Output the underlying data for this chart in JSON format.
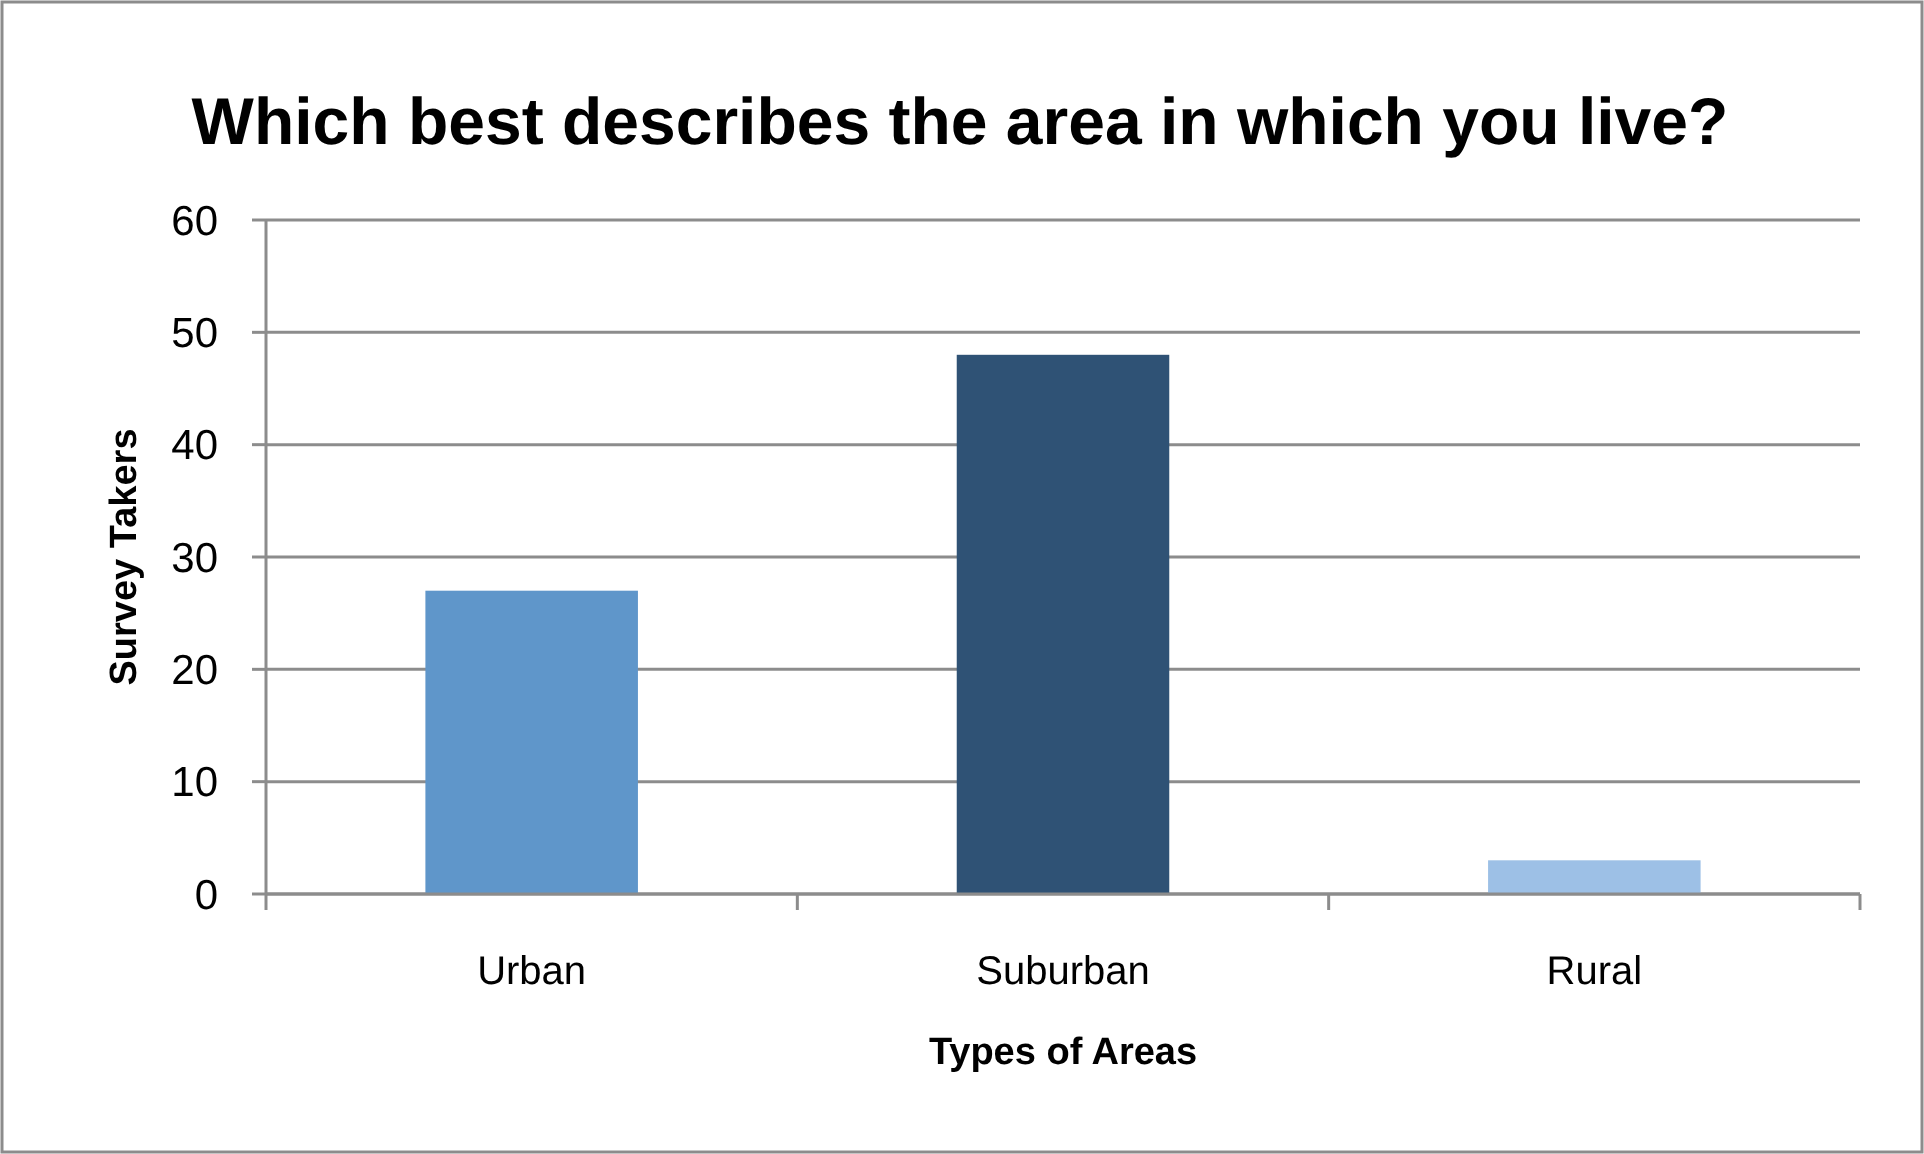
{
  "chart_data": {
    "type": "bar",
    "title": "Which best describes the area in which you live?",
    "xlabel": "Types of Areas",
    "ylabel": "Survey Takers",
    "categories": [
      "Urban",
      "Suburban",
      "Rural"
    ],
    "values": [
      27,
      48,
      3
    ],
    "colors": [
      "#5f96ca",
      "#2f5275",
      "#9dc0e6"
    ],
    "ylim": [
      0,
      60
    ],
    "yticks": [
      0,
      10,
      20,
      30,
      40,
      50,
      60
    ],
    "grid": "y"
  }
}
